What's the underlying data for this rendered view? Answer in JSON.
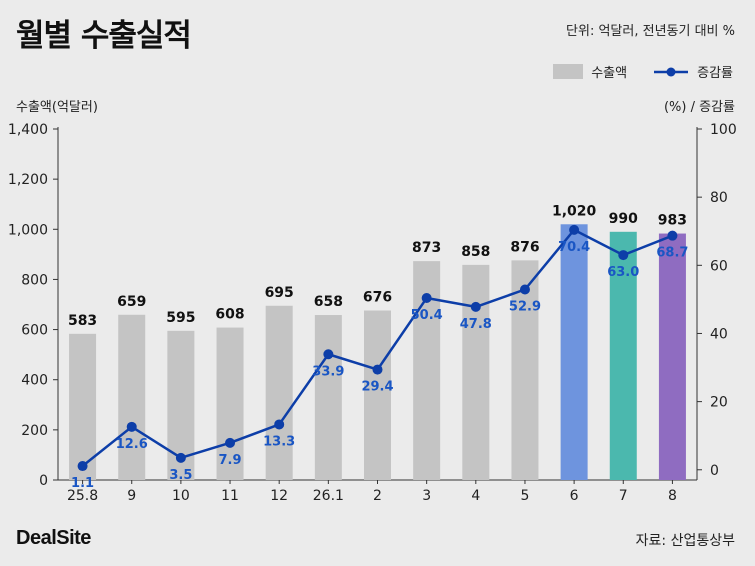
{
  "header": {
    "title": "월별 수출실적",
    "unit_note": "단위: 억달러, 전년동기 대비 %"
  },
  "legend": {
    "bar_label": "수출액",
    "line_label": "증감률"
  },
  "axes": {
    "left_label": "수출액(억달러)",
    "right_label": "(%) / 증감률"
  },
  "footer": {
    "logo": "DealSite",
    "source": "자료: 산업통상부"
  },
  "colors": {
    "bar_default": "#c4c4c4",
    "bar_jun": "#6e94de",
    "bar_jul": "#4bb8ae",
    "bar_aug": "#8f6cc1",
    "line": "#0d3ea8",
    "line_label": "#1a56c4"
  },
  "chart_data": {
    "type": "bar",
    "categories": [
      "25.8",
      "9",
      "10",
      "11",
      "12",
      "26.1",
      "2",
      "3",
      "4",
      "5",
      "6",
      "7",
      "8"
    ],
    "series": [
      {
        "name": "수출액",
        "type": "bar",
        "axis": "left",
        "values": [
          583,
          659,
          595,
          608,
          695,
          658,
          676,
          873,
          858,
          876,
          1020,
          990,
          983
        ],
        "labels": [
          "583",
          "659",
          "595",
          "608",
          "695",
          "658",
          "676",
          "873",
          "858",
          "876",
          "1,020",
          "990",
          "983"
        ]
      },
      {
        "name": "증감률",
        "type": "line",
        "axis": "right",
        "values": [
          1.1,
          12.6,
          3.5,
          7.9,
          13.3,
          33.9,
          29.4,
          50.4,
          47.8,
          52.9,
          70.4,
          63.0,
          68.7
        ],
        "labels": [
          "1.1",
          "12.6",
          "3.5",
          "7.9",
          "13.3",
          "33.9",
          "29.4",
          "50.4",
          "47.8",
          "52.9",
          "70.4",
          "63.0",
          "68.7"
        ]
      }
    ],
    "y_left": {
      "min": 0,
      "max": 1400,
      "ticks": [
        "0",
        "200",
        "400",
        "600",
        "800",
        "1,000",
        "1,200",
        "1,400"
      ]
    },
    "y_right": {
      "min": -3,
      "max": 100,
      "ticks": [
        "0",
        "20",
        "40",
        "60",
        "80",
        "100"
      ]
    },
    "grid": false
  }
}
